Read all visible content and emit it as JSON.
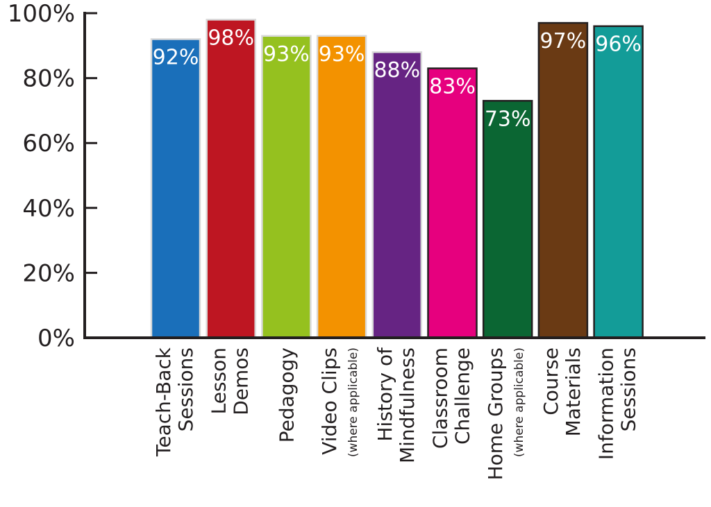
{
  "chart_data": {
    "type": "bar",
    "title": "",
    "xlabel": "",
    "ylabel": "",
    "ylim": [
      0,
      100
    ],
    "y_ticks": [
      "0%",
      "20%",
      "40%",
      "60%",
      "80%",
      "100%"
    ],
    "y_tick_values": [
      0,
      20,
      40,
      60,
      80,
      100
    ],
    "grid": false,
    "legend": "none",
    "categories": [
      {
        "lines": [
          "Teach-Back",
          "Sessions"
        ],
        "note": ""
      },
      {
        "lines": [
          "Lesson",
          "Demos"
        ],
        "note": ""
      },
      {
        "lines": [
          "Pedagogy"
        ],
        "note": ""
      },
      {
        "lines": [
          "Video Clips"
        ],
        "note": "(where applicable)"
      },
      {
        "lines": [
          "History of",
          "Mindfulness"
        ],
        "note": ""
      },
      {
        "lines": [
          "Classroom",
          "Challenge"
        ],
        "note": ""
      },
      {
        "lines": [
          "Home Groups"
        ],
        "note": "(where applicable)"
      },
      {
        "lines": [
          "Course",
          "Materials"
        ],
        "note": ""
      },
      {
        "lines": [
          "Information",
          "Sessions"
        ],
        "note": ""
      }
    ],
    "values": [
      92,
      98,
      93,
      93,
      88,
      83,
      73,
      97,
      96
    ],
    "data_labels": [
      "92%",
      "98%",
      "93%",
      "93%",
      "88%",
      "83%",
      "73%",
      "97%",
      "96%"
    ],
    "colors": [
      "#1a6fba",
      "#be1622",
      "#95c11f",
      "#f39200",
      "#662483",
      "#e6007e",
      "#0b6633",
      "#6a3a14",
      "#139c98"
    ],
    "border_colors": [
      "#d9d9d9",
      "#d9d9d9",
      "#d9d9d9",
      "#d9d9d9",
      "#d9d9d9",
      "#231f20",
      "#231f20",
      "#231f20",
      "#231f20"
    ]
  }
}
